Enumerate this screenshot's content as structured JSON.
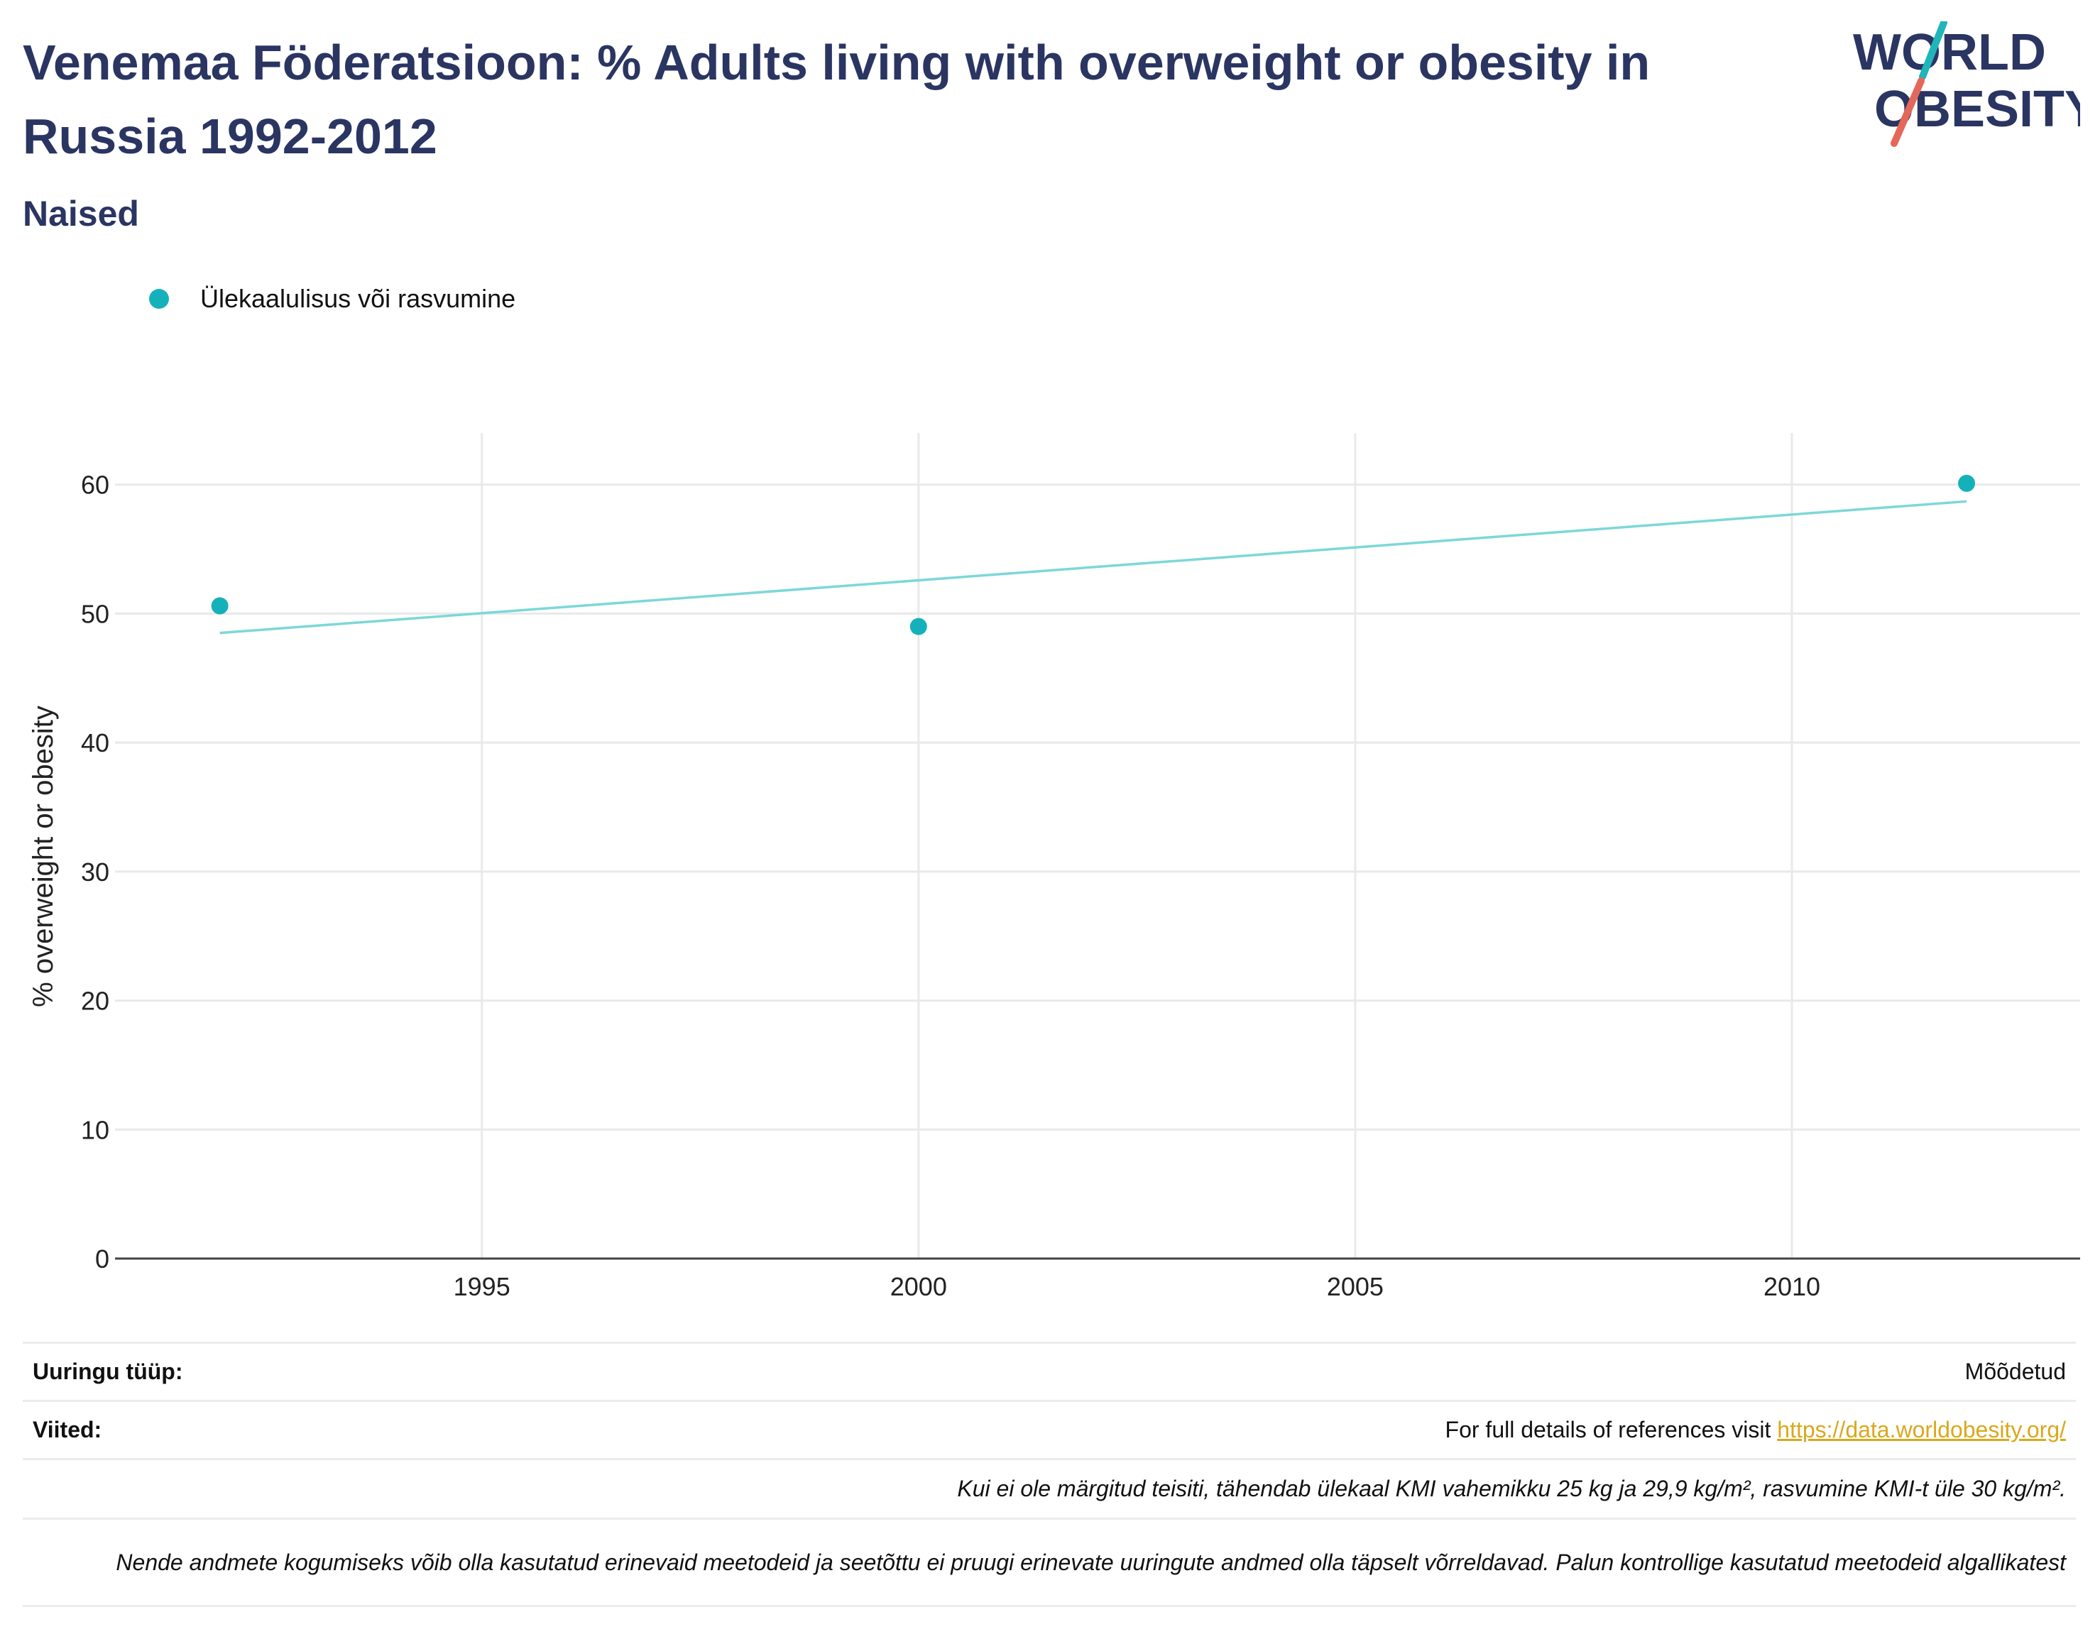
{
  "header": {
    "title": "Venemaa Föderatsioon: % Adults living with overweight or obesity in Russia 1992-2012",
    "subtitle": "Naised"
  },
  "logo": {
    "line1": "WORLD",
    "line2": "OBESITY",
    "colors": {
      "text": "#2a3562",
      "slash_teal": "#1fb5bb",
      "slash_coral": "#e4685a"
    }
  },
  "colors": {
    "series": "#15b1ba",
    "trend": "#7dd7d9",
    "grid": "#e9e9e9",
    "axis": "#444444"
  },
  "chart_data": {
    "type": "scatter",
    "title": "",
    "xlabel": "",
    "ylabel": "% overweight or obesity",
    "xlim": [
      1990.8,
      2013.3
    ],
    "ylim": [
      0,
      64
    ],
    "x_ticks": [
      1995,
      2000,
      2005,
      2010
    ],
    "y_ticks": [
      0,
      10,
      20,
      30,
      40,
      50,
      60
    ],
    "grid": true,
    "legend_position": "top-left",
    "series": [
      {
        "name": "Ülekaalulisus või rasvumine",
        "points": [
          {
            "x": 1992,
            "y": 50.6
          },
          {
            "x": 2000,
            "y": 49.0
          },
          {
            "x": 2012,
            "y": 60.1
          }
        ]
      }
    ],
    "trendline": [
      {
        "x": 1992,
        "y": 48.5
      },
      {
        "x": 2012,
        "y": 58.7
      }
    ]
  },
  "info": {
    "survey_type_label": "Uuringu tüüp:",
    "survey_type_value": "Mõõdetud",
    "references_label": "Viited:",
    "references_text": "For full details of references visit ",
    "references_link": "https://data.worldobesity.org/",
    "note1": "Kui ei ole märgitud teisiti, tähendab ülekaal KMI vahemikku 25 kg ja 29,9 kg/m², rasvumine KMI-t üle 30 kg/m².",
    "note2": "Nende andmete kogumiseks võib olla kasutatud erinevaid meetodeid ja seetõttu ei pruugi erinevate uuringute andmed olla täpselt võrreldavad. Palun kontrollige kasutatud meetodeid algallikatest"
  }
}
